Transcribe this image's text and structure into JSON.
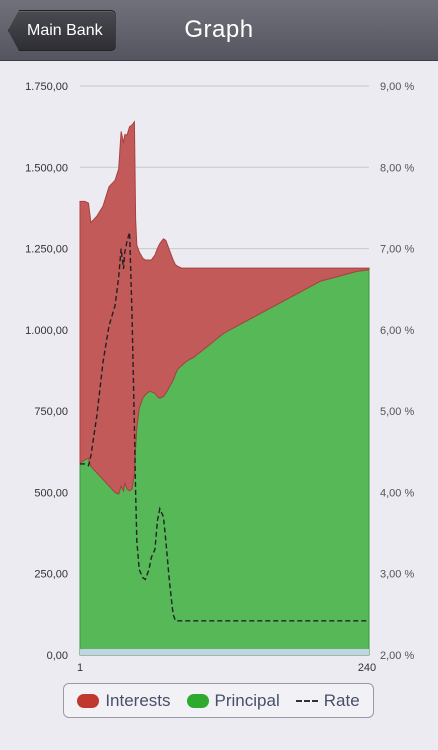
{
  "navbar": {
    "title": "Graph",
    "back_label": "Main Bank"
  },
  "colors": {
    "interests": "#c25a5a",
    "principal": "#56b856",
    "rate": "#222222",
    "baseline": "#c3d3e6"
  },
  "legend": {
    "interests_label": "Interests",
    "principal_label": "Principal",
    "rate_label": "Rate"
  },
  "chart_data": {
    "type": "area",
    "x_ticks": [
      "1",
      "240"
    ],
    "x_range": [
      1,
      240
    ],
    "y_left_ticks": [
      "0,00",
      "250,00",
      "500,00",
      "750,00",
      "1.000,00",
      "1.250,00",
      "1.500,00",
      "1.750,00"
    ],
    "y_left_range": [
      0,
      1750
    ],
    "y_right_ticks": [
      "2,00 %",
      "3,00 %",
      "4,00 %",
      "5,00 %",
      "6,00 %",
      "7,00 %",
      "8,00 %",
      "9,00 %"
    ],
    "y_right_range": [
      2,
      9
    ],
    "grid": true,
    "legend_position": "bottom",
    "x": [
      1,
      5,
      8,
      10,
      15,
      20,
      25,
      30,
      33,
      35,
      37,
      38,
      40,
      42,
      44,
      46,
      47,
      48,
      50,
      53,
      55,
      58,
      60,
      63,
      65,
      67,
      70,
      72,
      75,
      78,
      80,
      82,
      85,
      88,
      90,
      92,
      95,
      98,
      100,
      105,
      110,
      115,
      120,
      130,
      140,
      150,
      160,
      170,
      180,
      190,
      200,
      210,
      220,
      230,
      240
    ],
    "series": [
      {
        "name": "Principal",
        "values": [
          590,
          600,
          605,
          580,
          560,
          540,
          520,
          500,
          495,
          520,
          505,
          530,
          510,
          505,
          510,
          560,
          640,
          700,
          760,
          790,
          800,
          810,
          810,
          805,
          795,
          790,
          795,
          805,
          825,
          845,
          865,
          880,
          890,
          900,
          905,
          910,
          915,
          925,
          930,
          945,
          960,
          975,
          990,
          1010,
          1030,
          1050,
          1070,
          1090,
          1110,
          1130,
          1150,
          1160,
          1170,
          1180,
          1185
        ]
      },
      {
        "name": "Interests",
        "values": [
          805,
          795,
          785,
          750,
          790,
          840,
          920,
          960,
          1000,
          1090,
          1070,
          1070,
          1090,
          1120,
          1120,
          1080,
          700,
          560,
          480,
          430,
          415,
          405,
          405,
          425,
          455,
          475,
          485,
          470,
          420,
          370,
          335,
          315,
          300,
          290,
          285,
          280,
          275,
          265,
          260,
          245,
          230,
          215,
          200,
          180,
          160,
          140,
          120,
          100,
          80,
          60,
          40,
          30,
          20,
          10,
          5
        ]
      },
      {
        "name": "Rate",
        "axis": "right",
        "values": [
          4.35,
          4.35,
          4.33,
          4.45,
          4.95,
          5.6,
          6.05,
          6.3,
          6.65,
          7.0,
          6.75,
          6.95,
          7.1,
          7.2,
          6.2,
          4.8,
          4.0,
          3.4,
          3.05,
          2.95,
          2.93,
          3.05,
          3.2,
          3.3,
          3.65,
          3.8,
          3.7,
          3.4,
          2.9,
          2.5,
          2.42,
          2.42,
          2.42,
          2.42,
          2.42,
          2.42,
          2.42,
          2.42,
          2.42,
          2.42,
          2.42,
          2.42,
          2.42,
          2.42,
          2.42,
          2.42,
          2.42,
          2.42,
          2.42,
          2.42,
          2.42,
          2.42,
          2.42,
          2.42,
          2.42
        ]
      }
    ]
  }
}
